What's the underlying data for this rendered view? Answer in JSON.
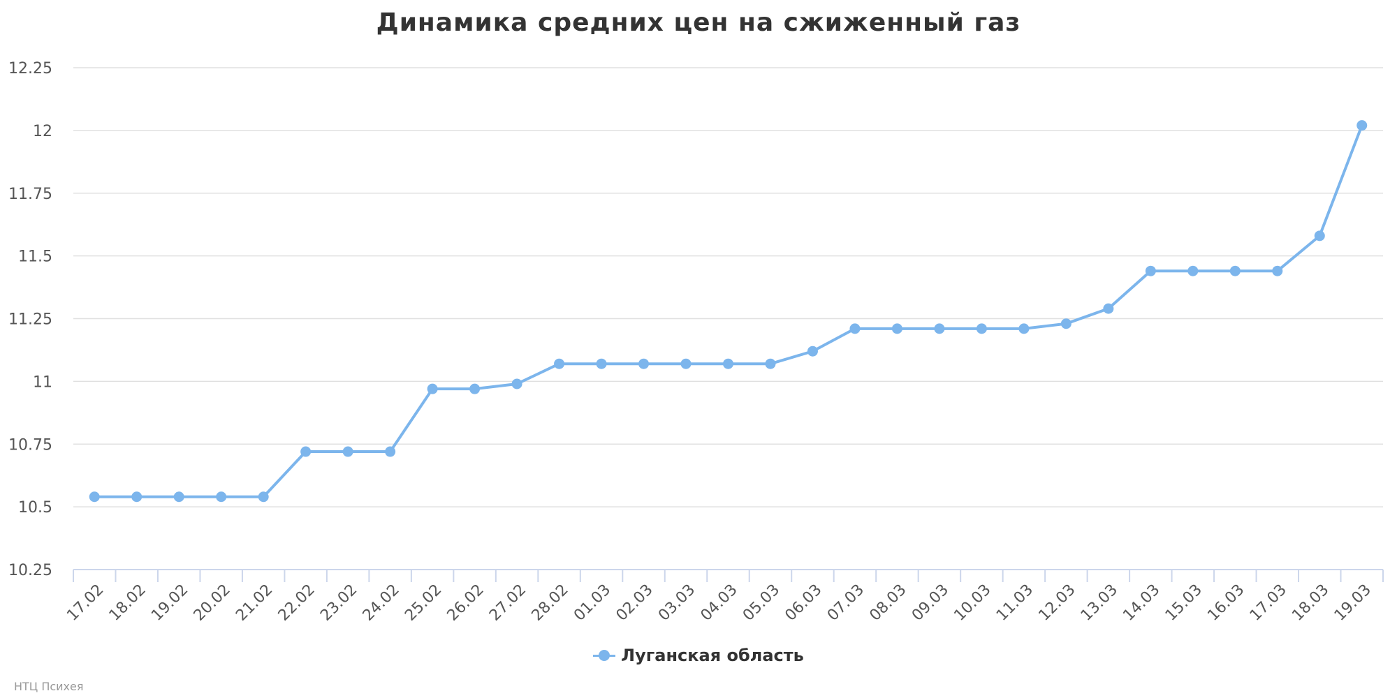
{
  "chart_data": {
    "type": "line",
    "title": "Динамика средних цен на сжиженный газ",
    "xlabel": "",
    "ylabel": "",
    "ylim": [
      10.25,
      12.25
    ],
    "yticks": [
      "10.25",
      "10.5",
      "10.75",
      "11",
      "11.25",
      "11.5",
      "11.75",
      "12",
      "12.25"
    ],
    "ytick_values": [
      10.25,
      10.5,
      10.75,
      11,
      11.25,
      11.5,
      11.75,
      12,
      12.25
    ],
    "grid": true,
    "legend_position": "bottom-center",
    "categories": [
      "17.02",
      "18.02",
      "19.02",
      "20.02",
      "21.02",
      "22.02",
      "23.02",
      "24.02",
      "25.02",
      "26.02",
      "27.02",
      "28.02",
      "01.03",
      "02.03",
      "03.03",
      "04.03",
      "05.03",
      "06.03",
      "07.03",
      "08.03",
      "09.03",
      "10.03",
      "11.03",
      "12.03",
      "13.03",
      "14.03",
      "15.03",
      "16.03",
      "17.03",
      "18.03",
      "19.03"
    ],
    "series": [
      {
        "name": "Луганская область",
        "color": "#7cb5ec",
        "values": [
          10.54,
          10.54,
          10.54,
          10.54,
          10.54,
          10.72,
          10.72,
          10.72,
          10.97,
          10.97,
          10.99,
          11.07,
          11.07,
          11.07,
          11.07,
          11.07,
          11.07,
          11.12,
          11.21,
          11.21,
          11.21,
          11.21,
          11.21,
          11.23,
          11.29,
          11.44,
          11.44,
          11.44,
          11.44,
          11.58,
          12.02
        ]
      }
    ]
  },
  "credits": "НТЦ Психея"
}
